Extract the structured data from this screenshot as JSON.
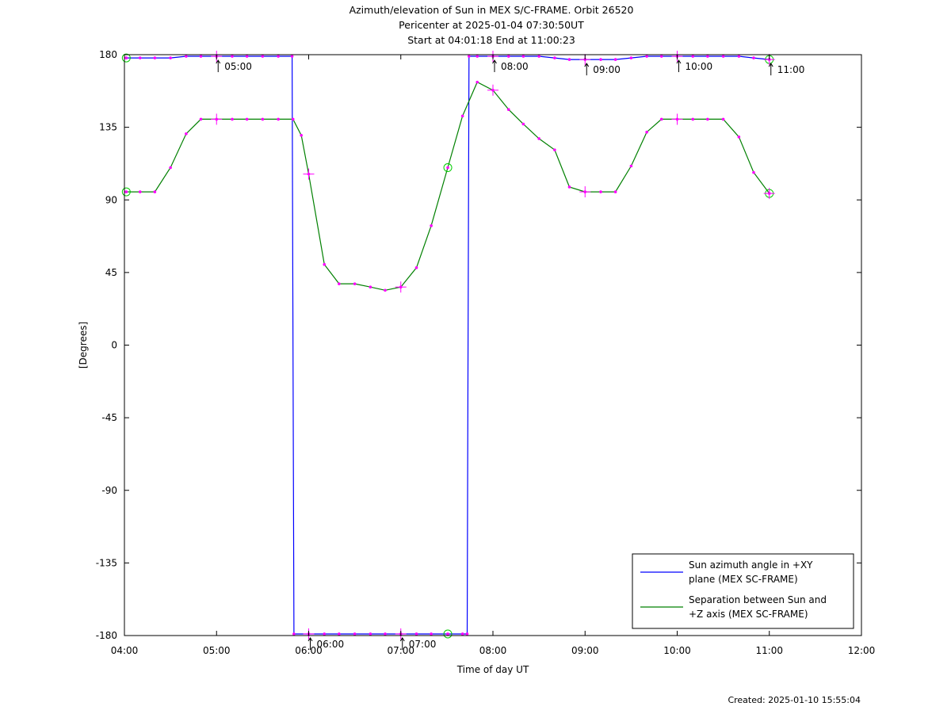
{
  "chart_data": {
    "type": "line",
    "title_lines": [
      "Azimuth/elevation of Sun in MEX S/C-FRAME.  Orbit 26520",
      "Pericenter at 2025-01-04 07:30:50UT",
      "Start at 04:01:18 End at 11:00:23"
    ],
    "xlabel": "Time of day UT",
    "ylabel": "[Degrees]",
    "xlim": [
      4.0,
      12.0
    ],
    "ylim": [
      -180,
      180
    ],
    "x_ticks": [
      "04:00",
      "05:00",
      "06:00",
      "07:00",
      "08:00",
      "09:00",
      "10:00",
      "11:00",
      "12:00"
    ],
    "y_ticks": [
      "180",
      "135",
      "90",
      "45",
      "0",
      "-45",
      "-90",
      "-135",
      "-180"
    ],
    "grid": false,
    "legend_position": "bottom-right",
    "series": [
      {
        "name": "Sun azimuth angle in +XY plane (MEX SC-FRAME)",
        "legend_lines": [
          "Sun azimuth angle in +XY",
          "plane (MEX SC-FRAME)"
        ],
        "color": "#0000ff",
        "x": [
          4.02,
          4.17,
          4.33,
          4.5,
          4.67,
          4.83,
          5.0,
          5.17,
          5.33,
          5.5,
          5.67,
          5.82,
          5.83,
          5.84,
          6.0,
          6.17,
          6.33,
          6.5,
          6.67,
          6.83,
          7.0,
          7.17,
          7.33,
          7.51,
          7.67,
          7.72,
          7.73,
          7.74,
          7.83,
          8.0,
          8.17,
          8.33,
          8.5,
          8.67,
          8.83,
          9.0,
          9.17,
          9.33,
          9.5,
          9.67,
          9.83,
          10.0,
          10.17,
          10.33,
          10.5,
          10.67,
          10.83,
          11.0
        ],
        "values": [
          178,
          178,
          178,
          178,
          179,
          179,
          179,
          179,
          179,
          179,
          179,
          179,
          0,
          -179,
          -179,
          -179,
          -179,
          -179,
          -179,
          -179,
          -179,
          -179,
          -179,
          -179,
          -179,
          -179,
          0,
          179,
          179,
          179,
          179,
          179,
          179,
          178,
          177,
          177,
          177,
          177,
          178,
          179,
          179,
          179,
          179,
          179,
          179,
          179,
          178,
          177
        ]
      },
      {
        "name": "Separation between Sun and +Z axis (MEX SC-FRAME)",
        "legend_lines": [
          "Separation between Sun and",
          "+Z axis (MEX SC-FRAME)"
        ],
        "color": "#008000",
        "x": [
          4.02,
          4.17,
          4.33,
          4.5,
          4.67,
          4.83,
          5.0,
          5.17,
          5.33,
          5.5,
          5.67,
          5.83,
          5.92,
          6.0,
          6.17,
          6.33,
          6.5,
          6.67,
          6.83,
          7.0,
          7.17,
          7.33,
          7.51,
          7.67,
          7.83,
          8.0,
          8.17,
          8.33,
          8.5,
          8.67,
          8.83,
          9.0,
          9.17,
          9.33,
          9.5,
          9.67,
          9.83,
          10.0,
          10.17,
          10.33,
          10.5,
          10.67,
          10.83,
          11.0
        ],
        "values": [
          95,
          95,
          95,
          110,
          131,
          140,
          140,
          140,
          140,
          140,
          140,
          140,
          130,
          106,
          50,
          38,
          38,
          36,
          34,
          36,
          48,
          74,
          110,
          142,
          163,
          158,
          146,
          137,
          128,
          121,
          98,
          95,
          95,
          95,
          111,
          132,
          140,
          140,
          140,
          140,
          140,
          129,
          107,
          94
        ]
      }
    ],
    "markers": {
      "color": "#ff00ff",
      "hour_labels": [
        {
          "label": "05:00",
          "x": 5.0,
          "y": 179
        },
        {
          "label": "06:00",
          "x": 6.0,
          "y": -179
        },
        {
          "label": "07:00",
          "x": 7.0,
          "y": -179
        },
        {
          "label": "08:00",
          "x": 8.0,
          "y": 179
        },
        {
          "label": "09:00",
          "x": 9.0,
          "y": 177
        },
        {
          "label": "10:00",
          "x": 10.0,
          "y": 179
        },
        {
          "label": "11:00",
          "x": 11.0,
          "y": 177
        }
      ],
      "circle_color": "#00cc00"
    }
  },
  "footer": {
    "created": "Created: 2025-01-10 15:55:04"
  }
}
